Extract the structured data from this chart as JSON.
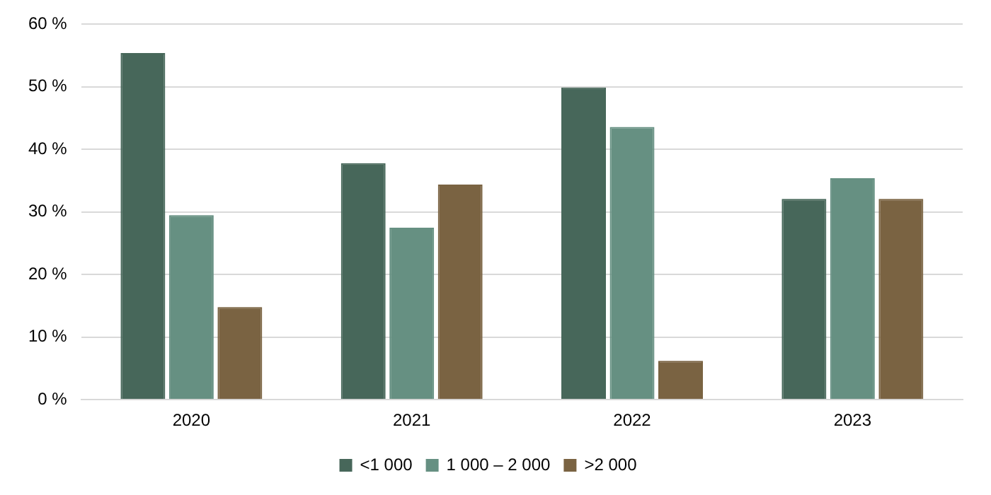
{
  "chart_data": {
    "type": "bar",
    "categories": [
      "2020",
      "2021",
      "2022",
      "2023"
    ],
    "series": [
      {
        "name": "<1 000",
        "color": "#47675a",
        "values": [
          55.4,
          37.8,
          49.9,
          32.1
        ]
      },
      {
        "name": "1 000 – 2 000",
        "color": "#669082",
        "values": [
          29.5,
          27.5,
          43.6,
          35.4
        ]
      },
      {
        "name": ">2 000",
        "color": "#7a6342",
        "values": [
          14.8,
          34.4,
          6.2,
          32.1
        ]
      }
    ],
    "ylim": [
      0,
      60
    ],
    "yticks": [
      {
        "value": 0,
        "label": "0 %"
      },
      {
        "value": 10,
        "label": "10 %"
      },
      {
        "value": 20,
        "label": "20 %"
      },
      {
        "value": 30,
        "label": "30 %"
      },
      {
        "value": 40,
        "label": "40 %"
      },
      {
        "value": 50,
        "label": "50 %"
      },
      {
        "value": 60,
        "label": "60 %"
      }
    ],
    "grid": "y",
    "legend": "bottom"
  }
}
